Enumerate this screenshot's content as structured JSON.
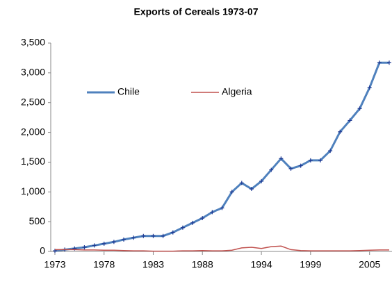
{
  "chart_data": {
    "type": "line",
    "title": "Exports of Cereals  1973-07",
    "x": [
      1973,
      1974,
      1975,
      1976,
      1977,
      1978,
      1979,
      1980,
      1981,
      1982,
      1983,
      1984,
      1985,
      1986,
      1987,
      1988,
      1989,
      1990,
      1991,
      1992,
      1993,
      1994,
      1995,
      1996,
      1997,
      1998,
      1999,
      2000,
      2001,
      2002,
      2003,
      2004,
      2005,
      2006,
      2007
    ],
    "series": [
      {
        "name": "Chile",
        "color": "#4f81bd",
        "marker": "+",
        "values": [
          10,
          30,
          50,
          70,
          100,
          130,
          160,
          200,
          230,
          260,
          260,
          260,
          320,
          400,
          480,
          560,
          660,
          730,
          1000,
          1150,
          1050,
          1180,
          1370,
          1560,
          1390,
          1440,
          1530,
          1530,
          1690,
          2010,
          2200,
          2400,
          2750,
          3170,
          3170
        ]
      },
      {
        "name": "Algeria",
        "color": "#c0504d",
        "values": [
          30,
          30,
          30,
          25,
          25,
          20,
          20,
          15,
          10,
          10,
          5,
          5,
          5,
          10,
          10,
          15,
          10,
          10,
          20,
          60,
          70,
          50,
          80,
          90,
          30,
          15,
          10,
          10,
          10,
          10,
          10,
          15,
          20,
          25,
          25
        ]
      }
    ],
    "xlim": [
      1973,
      2007
    ],
    "xticks": [
      1973,
      1978,
      1983,
      1988,
      1994,
      1999,
      2005
    ],
    "ylim": [
      0,
      3500
    ],
    "yticks": [
      0,
      500,
      {
        "value": 1000,
        "label": "1,000"
      },
      {
        "value": 1500,
        "label": "1,500"
      },
      {
        "value": 2000,
        "label": "2,000"
      },
      {
        "value": 2500,
        "label": "2,500"
      },
      {
        "value": 3000,
        "label": "3,000"
      },
      {
        "value": 3500,
        "label": "3,500"
      }
    ],
    "legend": "upper left"
  }
}
